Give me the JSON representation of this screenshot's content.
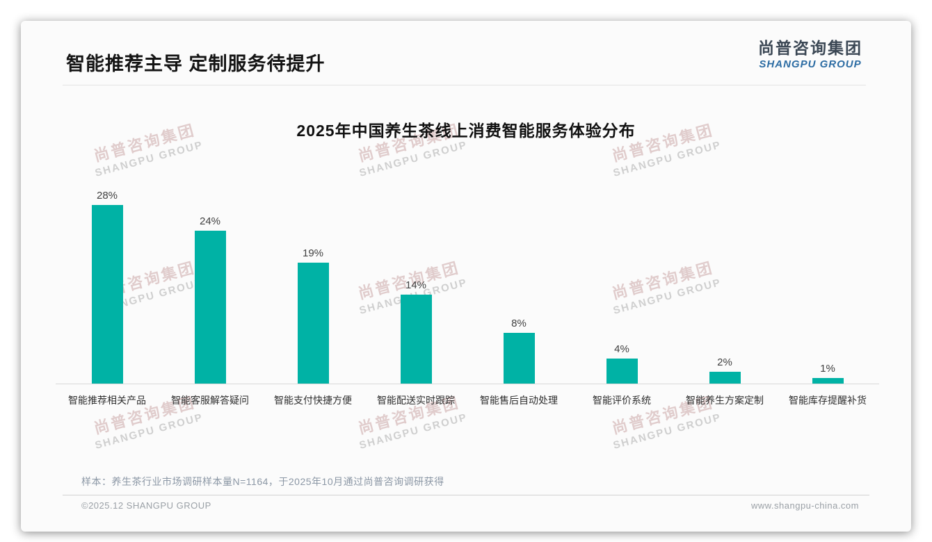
{
  "page": {
    "slide_title": "智能推荐主导 定制服务待提升",
    "logo": {
      "cn": "尚普咨询集团",
      "en": "SHANGPU GROUP"
    },
    "watermark": {
      "line1": "尚普咨询集团",
      "line2": "SHANGPU GROUP"
    },
    "note": "样本：养生茶行业市场调研样本量N=1164，于2025年10月通过尚普咨询调研获得",
    "footer": {
      "copyright": "©2025.12 SHANGPU GROUP",
      "website": "www.shangpu-china.com"
    },
    "colors": {
      "bar": "#00b2a5",
      "logo_en_blue": "#2c6ca3",
      "note_text": "#8b97a5"
    }
  },
  "chart_data": {
    "type": "bar",
    "title": "2025年中国养生茶线上消费智能服务体验分布",
    "categories": [
      "智能推荐相关产品",
      "智能客服解答疑问",
      "智能支付快捷方便",
      "智能配送实时跟踪",
      "智能售后自动处理",
      "智能评价系统",
      "智能养生方案定制",
      "智能库存提醒补货"
    ],
    "values": [
      28,
      24,
      19,
      14,
      8,
      4,
      2,
      1
    ],
    "labels": [
      "28%",
      "24%",
      "19%",
      "14%",
      "8%",
      "4%",
      "2%",
      "1%"
    ],
    "unit": "%",
    "bar_color": "#00b2a5",
    "ylim": [
      0,
      30
    ],
    "grid": false,
    "legend_position": "none",
    "xlabel": "",
    "ylabel": ""
  }
}
